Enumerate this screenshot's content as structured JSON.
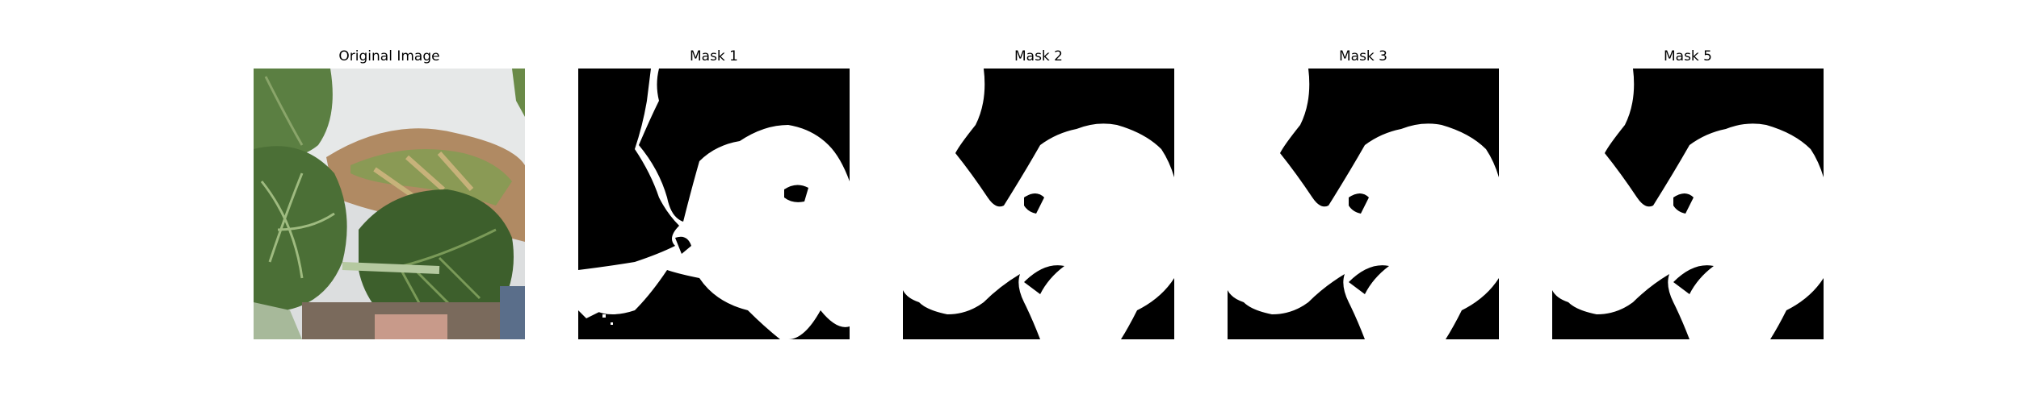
{
  "panels": [
    {
      "title": "Original Image",
      "kind": "photo"
    },
    {
      "title": "Mask 1",
      "kind": "mask"
    },
    {
      "title": "Mask 2",
      "kind": "mask"
    },
    {
      "title": "Mask 3",
      "kind": "mask"
    },
    {
      "title": "Mask 5",
      "kind": "mask"
    }
  ],
  "colors": {
    "background": "#ffffff",
    "mask_foreground": "#ffffff",
    "mask_background": "#000000",
    "leaf_dark": "#3d5f2c",
    "leaf_mid": "#5b7f42",
    "leaf_light": "#8aa56a",
    "wall": "#dcdedf",
    "dry_leaf": "#b08a63"
  }
}
